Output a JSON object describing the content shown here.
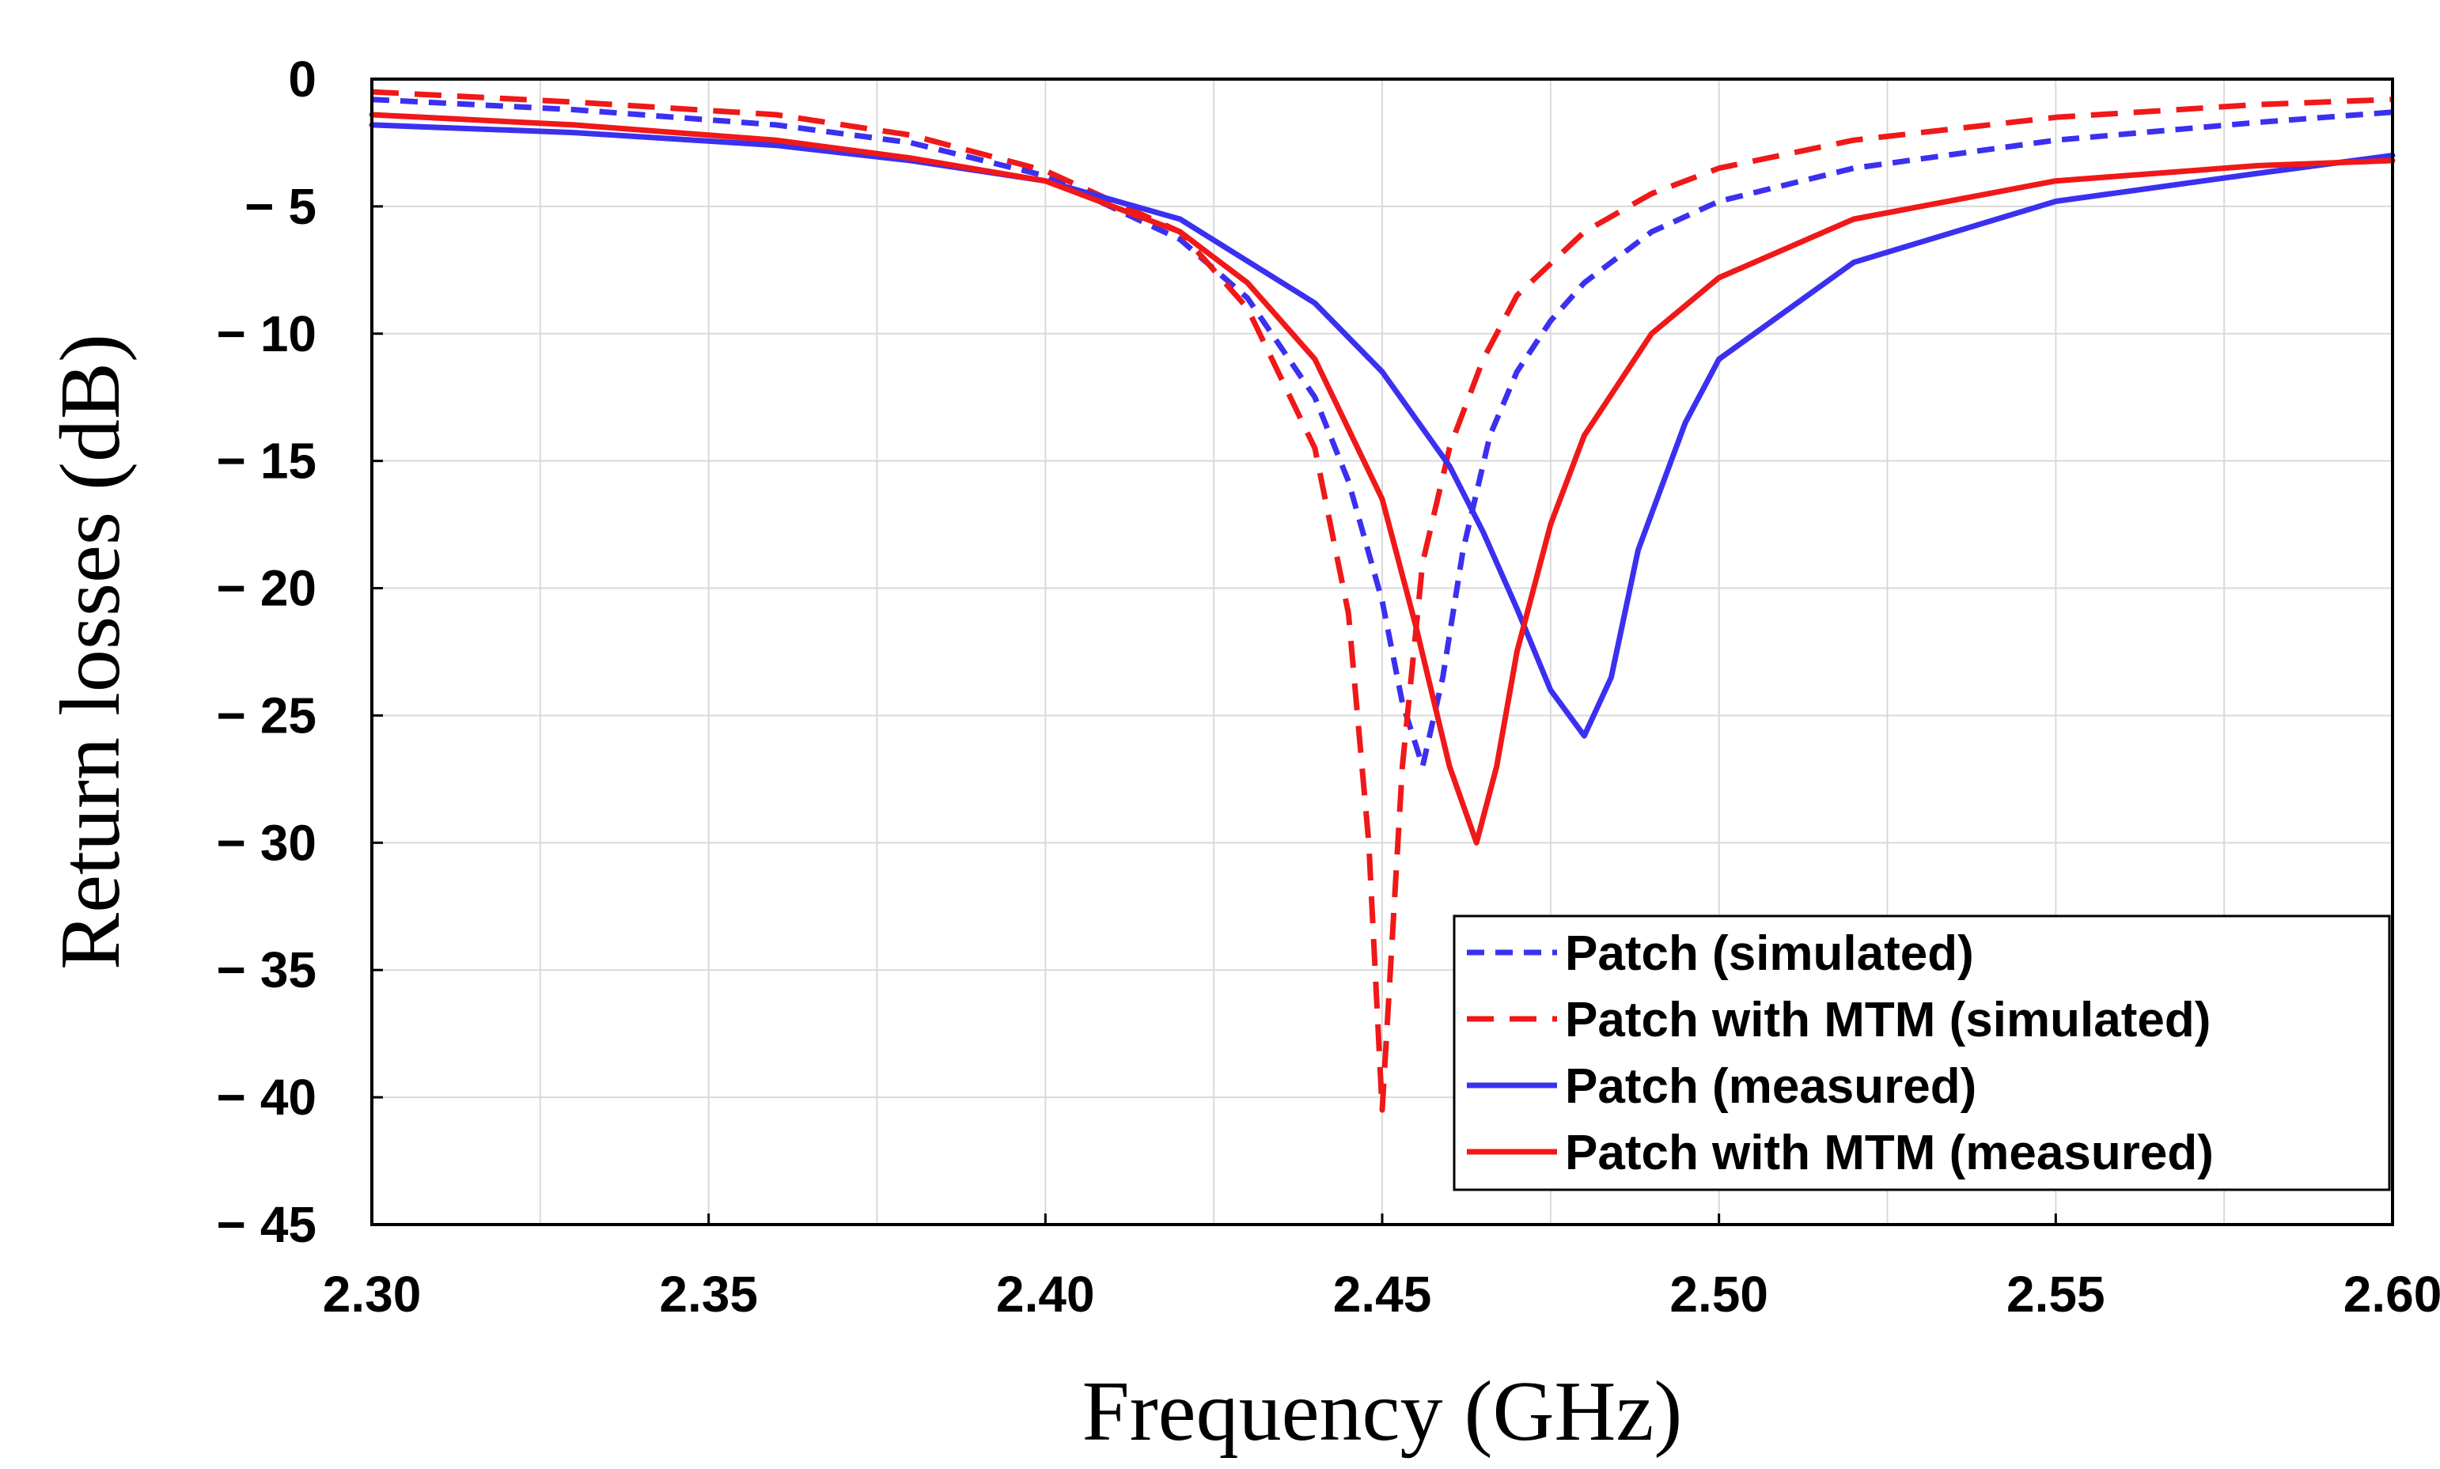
{
  "chart_data": {
    "type": "line",
    "title": "",
    "xlabel": "Frequency (GHz)",
    "ylabel": "Return losses  (dB)",
    "xlim": [
      2.3,
      2.6
    ],
    "ylim": [
      -45,
      0
    ],
    "grid": true,
    "legend_position": "bottom-right",
    "x_ticks": [
      2.3,
      2.35,
      2.4,
      2.45,
      2.5,
      2.55,
      2.6
    ],
    "x_tick_labels": [
      "2.30",
      "2.35",
      "2.40",
      "2.45",
      "2.50",
      "2.55",
      "2.60"
    ],
    "y_ticks": [
      0,
      -5,
      -10,
      -15,
      -20,
      -25,
      -30,
      -35,
      -40,
      -45
    ],
    "y_tick_labels": [
      "0",
      "− 5",
      "− 10",
      "− 15",
      "− 20",
      "− 25",
      "− 30",
      "− 35",
      "− 40",
      "− 45"
    ],
    "series": [
      {
        "name": "Patch (simulated)",
        "color": "#3b30f0",
        "dash": "dotted",
        "x": [
          2.3,
          2.33,
          2.36,
          2.38,
          2.4,
          2.42,
          2.43,
          2.44,
          2.445,
          2.45,
          2.453,
          2.456,
          2.459,
          2.462,
          2.466,
          2.47,
          2.475,
          2.48,
          2.49,
          2.5,
          2.52,
          2.55,
          2.58,
          2.6
        ],
        "y": [
          -0.8,
          -1.2,
          -1.8,
          -2.5,
          -3.8,
          -6.3,
          -8.6,
          -12.5,
          -15.8,
          -20.5,
          -24.5,
          -27.0,
          -23.5,
          -18.5,
          -14.0,
          -11.5,
          -9.5,
          -8.0,
          -6.0,
          -4.8,
          -3.5,
          -2.4,
          -1.7,
          -1.3
        ]
      },
      {
        "name": "Patch with MTM (simulated)",
        "color": "#f01818",
        "dash": "dashed",
        "x": [
          2.3,
          2.33,
          2.36,
          2.38,
          2.4,
          2.42,
          2.43,
          2.44,
          2.445,
          2.448,
          2.45,
          2.451,
          2.453,
          2.456,
          2.46,
          2.465,
          2.47,
          2.48,
          2.49,
          2.5,
          2.52,
          2.55,
          2.58,
          2.6
        ],
        "y": [
          -0.5,
          -0.9,
          -1.4,
          -2.2,
          -3.6,
          -6.0,
          -9.0,
          -14.5,
          -21.0,
          -30.0,
          -40.5,
          -36.0,
          -27.0,
          -19.0,
          -14.5,
          -11.0,
          -8.5,
          -6.0,
          -4.5,
          -3.5,
          -2.4,
          -1.5,
          -1.0,
          -0.8
        ]
      },
      {
        "name": "Patch (measured)",
        "color": "#3b30f0",
        "dash": "solid",
        "x": [
          2.3,
          2.33,
          2.36,
          2.38,
          2.4,
          2.42,
          2.44,
          2.45,
          2.46,
          2.465,
          2.47,
          2.475,
          2.48,
          2.484,
          2.488,
          2.495,
          2.5,
          2.52,
          2.55,
          2.58,
          2.6
        ],
        "y": [
          -1.8,
          -2.1,
          -2.6,
          -3.2,
          -4.0,
          -5.5,
          -8.8,
          -11.5,
          -15.2,
          -17.8,
          -20.8,
          -24.0,
          -25.8,
          -23.5,
          -18.5,
          -13.5,
          -11.0,
          -7.2,
          -4.8,
          -3.7,
          -3.0
        ]
      },
      {
        "name": "Patch with MTM (measured)",
        "color": "#f01818",
        "dash": "solid",
        "x": [
          2.3,
          2.33,
          2.36,
          2.38,
          2.4,
          2.42,
          2.43,
          2.44,
          2.45,
          2.455,
          2.46,
          2.464,
          2.467,
          2.47,
          2.475,
          2.48,
          2.49,
          2.5,
          2.52,
          2.55,
          2.58,
          2.6
        ],
        "y": [
          -1.4,
          -1.8,
          -2.4,
          -3.1,
          -4.0,
          -6.0,
          -8.0,
          -11.0,
          -16.5,
          -21.5,
          -27.0,
          -30.0,
          -27.0,
          -22.5,
          -17.5,
          -14.0,
          -10.0,
          -7.8,
          -5.5,
          -4.0,
          -3.4,
          -3.2
        ]
      }
    ]
  }
}
